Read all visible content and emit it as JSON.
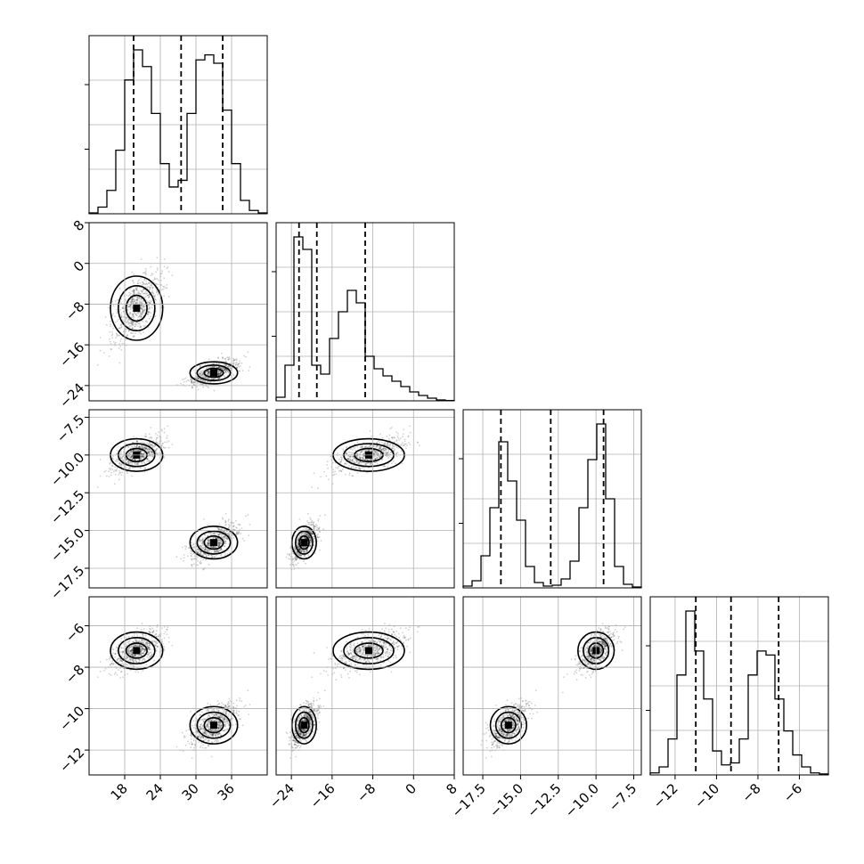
{
  "chart_data": {
    "type": "corner",
    "parameters": [
      {
        "range": [
          12,
          42
        ],
        "ticks": [
          18,
          24,
          30,
          36
        ],
        "quantiles": [
          19.5,
          27.5,
          34.5
        ]
      },
      {
        "range": [
          -27,
          8
        ],
        "ticks": [
          -24,
          -16,
          -8,
          0,
          8
        ],
        "quantiles": [
          -22.5,
          -19,
          -9.5
        ]
      },
      {
        "range": [
          -18.8,
          -7
        ],
        "ticks": [
          -17.5,
          -15.0,
          -12.5,
          -10.0,
          -7.5
        ],
        "quantiles": [
          -16.3,
          -13,
          -9.5
        ]
      },
      {
        "range": [
          -13.2,
          -4.6
        ],
        "ticks": [
          -12,
          -10,
          -8,
          -6
        ],
        "quantiles": [
          -11,
          -9.3,
          -7
        ]
      }
    ],
    "tick_labels": {
      "p0": [
        "18",
        "24",
        "30",
        "36"
      ],
      "p1": [
        "−24",
        "−16",
        "−8",
        "0",
        "8"
      ],
      "p2": [
        "−17.5",
        "−15.0",
        "−12.5",
        "−10.0",
        "−7.5"
      ],
      "p3": [
        "−12",
        "−10",
        "−8",
        "−6"
      ]
    },
    "histograms": [
      {
        "bins": [
          12,
          13.5,
          15,
          16.5,
          18,
          19.5,
          21,
          22.5,
          24,
          25.5,
          27,
          28.5,
          30,
          31.5,
          33,
          34.5,
          36,
          37.5,
          39,
          40.5,
          42
        ],
        "counts": [
          0.005,
          0.04,
          0.14,
          0.38,
          0.8,
          0.98,
          0.88,
          0.6,
          0.3,
          0.16,
          0.2,
          0.6,
          0.92,
          0.95,
          0.9,
          0.62,
          0.3,
          0.08,
          0.02,
          0.005
        ]
      },
      {
        "bins": [
          -27,
          -25.25,
          -23.5,
          -21.75,
          -20,
          -18.25,
          -16.5,
          -14.75,
          -13,
          -11.25,
          -9.5,
          -7.75,
          -6,
          -4.25,
          -2.5,
          -0.75,
          1,
          2.75,
          4.5,
          6.25,
          8
        ],
        "counts": [
          0.02,
          0.2,
          0.92,
          0.85,
          0.2,
          0.15,
          0.35,
          0.5,
          0.62,
          0.55,
          0.25,
          0.18,
          0.14,
          0.11,
          0.08,
          0.05,
          0.03,
          0.015,
          0.005,
          0.002
        ]
      },
      {
        "bins": [
          -18.8,
          -18.21,
          -17.62,
          -17.03,
          -16.44,
          -15.85,
          -15.26,
          -14.67,
          -14.08,
          -13.49,
          -12.9,
          -12.31,
          -11.72,
          -11.13,
          -10.54,
          -9.95,
          -9.36,
          -8.77,
          -8.18,
          -7.59,
          -7
        ],
        "counts": [
          0.01,
          0.04,
          0.18,
          0.45,
          0.82,
          0.6,
          0.38,
          0.12,
          0.03,
          0.01,
          0.015,
          0.05,
          0.15,
          0.45,
          0.72,
          0.92,
          0.5,
          0.12,
          0.02,
          0.005
        ]
      },
      {
        "bins": [
          -13.2,
          -12.77,
          -12.34,
          -11.91,
          -11.48,
          -11.05,
          -10.62,
          -10.19,
          -9.76,
          -9.33,
          -8.9,
          -8.47,
          -8.04,
          -7.61,
          -7.18,
          -6.75,
          -6.32,
          -5.89,
          -5.46,
          -5.03,
          -4.6
        ],
        "counts": [
          0.01,
          0.04,
          0.18,
          0.5,
          0.82,
          0.62,
          0.38,
          0.12,
          0.05,
          0.06,
          0.18,
          0.5,
          0.62,
          0.6,
          0.38,
          0.22,
          0.1,
          0.04,
          0.01,
          0.005
        ]
      }
    ],
    "modes": [
      {
        "center": [
          20,
          -8.8,
          -10,
          -7.2
        ],
        "spread": [
          2.2,
          3.5,
          0.6,
          0.5
        ]
      },
      {
        "center": [
          33,
          -21.5,
          -15.8,
          -10.8
        ],
        "spread": [
          2.0,
          1.2,
          0.6,
          0.5
        ]
      }
    ],
    "quantile_style": "dashed",
    "grid": true
  }
}
